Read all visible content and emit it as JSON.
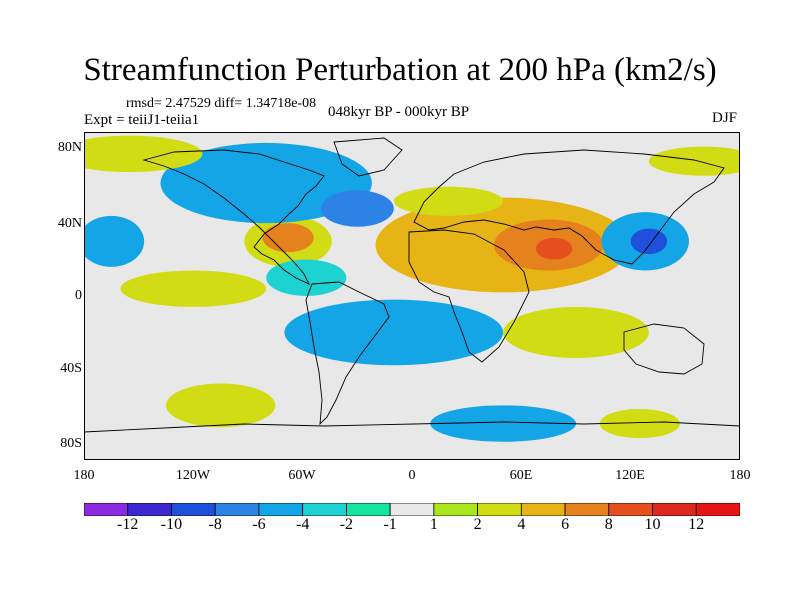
{
  "title": "Streamfunction Perturbation at 200 hPa (km2/s)",
  "stats": "rmsd= 2.47529 diff= 1.34718e-08",
  "experiment": "Expt = teiiJ1-teiia1",
  "period": "048kyr BP - 000kyr BP",
  "season": "DJF",
  "lat_ticks": [
    "80N",
    "40N",
    "0",
    "40S",
    "80S"
  ],
  "lon_ticks": [
    "180",
    "120W",
    "60W",
    "0",
    "60E",
    "120E",
    "180"
  ],
  "colorbar": {
    "labels": [
      "-12",
      "-10",
      "-8",
      "-6",
      "-4",
      "-2",
      "-1",
      "1",
      "2",
      "4",
      "6",
      "8",
      "10",
      "12"
    ],
    "colors": [
      "#8a2be2",
      "#3c28d2",
      "#1e50dc",
      "#2d82e6",
      "#14a5e6",
      "#1ed2d2",
      "#14e6a0",
      "#e8e8e8",
      "#aae61e",
      "#d2dc14",
      "#e6b414",
      "#e6821e",
      "#e6501e",
      "#dc281e",
      "#e61414"
    ]
  },
  "field": {
    "background": "#e8e8e8",
    "features": [
      {
        "lon": 50,
        "lat": 28,
        "rx": 70,
        "ry": 26,
        "level": "4"
      },
      {
        "lon": 75,
        "lat": 28,
        "rx": 30,
        "ry": 14,
        "level": "6"
      },
      {
        "lon": 78,
        "lat": 26,
        "rx": 10,
        "ry": 6,
        "level": "8"
      },
      {
        "lon": 20,
        "lat": 52,
        "rx": 30,
        "ry": 8,
        "level": "2"
      },
      {
        "lon": -68,
        "lat": 30,
        "rx": 24,
        "ry": 14,
        "level": "2"
      },
      {
        "lon": -68,
        "lat": 32,
        "rx": 14,
        "ry": 8,
        "level": "6"
      },
      {
        "lon": -58,
        "lat": 10,
        "rx": 22,
        "ry": 10,
        "level": "-2"
      },
      {
        "lon": -80,
        "lat": 62,
        "rx": 58,
        "ry": 22,
        "level": "-4"
      },
      {
        "lon": -30,
        "lat": 48,
        "rx": 20,
        "ry": 10,
        "level": "-6"
      },
      {
        "lon": 128,
        "lat": 30,
        "rx": 24,
        "ry": 16,
        "level": "-4"
      },
      {
        "lon": 130,
        "lat": 30,
        "rx": 10,
        "ry": 7,
        "level": "-8"
      },
      {
        "lon": -165,
        "lat": 30,
        "rx": 18,
        "ry": 14,
        "level": "-4"
      },
      {
        "lon": -155,
        "lat": 78,
        "rx": 40,
        "ry": 10,
        "level": "2"
      },
      {
        "lon": 160,
        "lat": 74,
        "rx": 30,
        "ry": 8,
        "level": "2"
      },
      {
        "lon": -120,
        "lat": 4,
        "rx": 40,
        "ry": 10,
        "level": "2"
      },
      {
        "lon": -10,
        "lat": -20,
        "rx": 60,
        "ry": 18,
        "level": "-4"
      },
      {
        "lon": 90,
        "lat": -20,
        "rx": 40,
        "ry": 14,
        "level": "2"
      },
      {
        "lon": 50,
        "lat": -70,
        "rx": 40,
        "ry": 10,
        "level": "-4"
      },
      {
        "lon": -105,
        "lat": -60,
        "rx": 30,
        "ry": 12,
        "level": "2"
      },
      {
        "lon": 125,
        "lat": -70,
        "rx": 22,
        "ry": 8,
        "level": "2"
      }
    ]
  }
}
